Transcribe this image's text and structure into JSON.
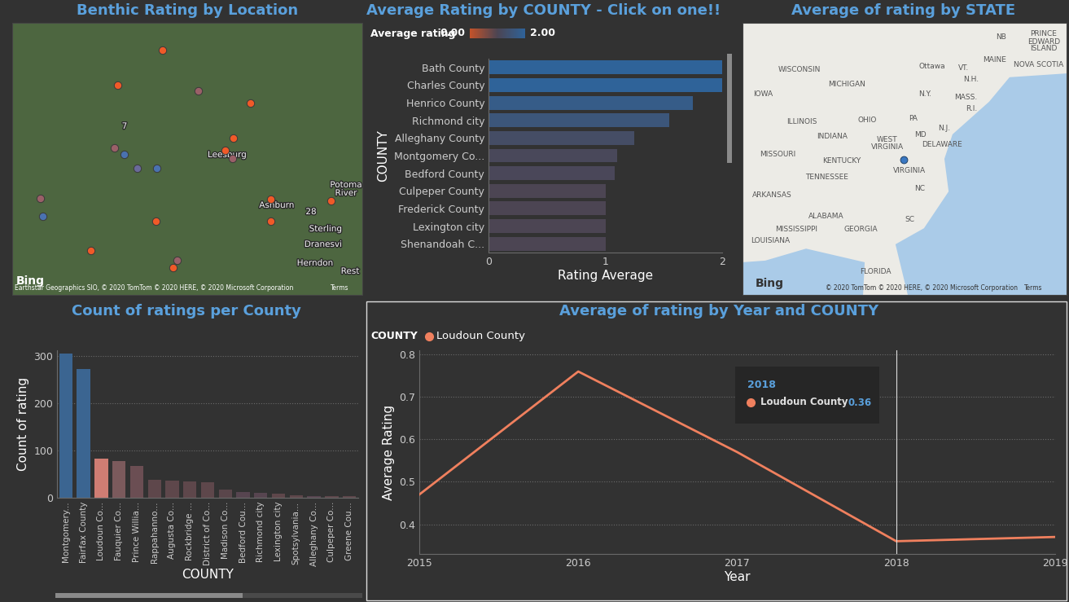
{
  "chart_data": [
    {
      "type": "map",
      "title": "Benthic Rating by Location",
      "xlim": [
        0,
        430
      ],
      "ylim": [
        0,
        334
      ],
      "tick_labels": false,
      "x": [
        185,
        130,
        229,
        293,
        272,
        262,
        271,
        126,
        138,
        154,
        178,
        35,
        38,
        318,
        392,
        177,
        318,
        97,
        203,
        198
      ],
      "y": [
        300,
        257,
        250,
        235,
        192,
        177,
        167,
        180,
        172,
        155,
        155,
        118,
        96,
        117,
        115,
        90,
        90,
        54,
        42,
        33
      ],
      "colors": [
        "#f05a28",
        "#f05a28",
        "#9a6068",
        "#f05a28",
        "#f05a28",
        "#f05a28",
        "#9a6068",
        "#9a6068",
        "#4a72b0",
        "#6a6a9a",
        "#4a72b0",
        "#9a6068",
        "#4a72b0",
        "#f05a28",
        "#f05a28",
        "#f05a28",
        "#f05a28",
        "#f05a28",
        "#9a6068",
        "#f05a28"
      ],
      "labels": [
        {
          "text": "Leesburg",
          "x": 264,
          "y": 172
        },
        {
          "text": "Ashburn",
          "x": 325,
          "y": 110
        },
        {
          "text": "Sterling",
          "x": 385,
          "y": 81
        },
        {
          "text": "Dranesvi",
          "x": 382,
          "y": 62
        },
        {
          "text": "Herndon",
          "x": 372,
          "y": 39
        },
        {
          "text": "Rest",
          "x": 415,
          "y": 29
        },
        {
          "text": "Potoma\nRiver",
          "x": 410,
          "y": 130
        },
        {
          "text": "7",
          "x": 138,
          "y": 207
        },
        {
          "text": "28",
          "x": 367,
          "y": 102
        }
      ],
      "logo": "Bing",
      "credits": "Earthstar Geographics SIO, © 2020 TomTom © 2020 HERE, © 2020 Microsoft Corporation",
      "terms": "Terms"
    },
    {
      "type": "bar",
      "orientation": "horizontal",
      "title": "Average Rating by COUNTY - Click on one!!",
      "xlabel": "Rating Average",
      "ylabel": "COUNTY",
      "categories": [
        "Bath County",
        "Charles County",
        "Henrico County",
        "Richmond city",
        "Alleghany County",
        "Montgomery Co...",
        "Bedford County",
        "Culpeper County",
        "Frederick County",
        "Lexington city",
        "Shenandoah C..."
      ],
      "values": [
        2,
        2,
        1.75,
        1.55,
        1.25,
        1.1,
        1.08,
        1,
        1,
        1,
        1
      ],
      "xlim": [
        0,
        2
      ],
      "xticks": [
        0,
        1,
        2
      ],
      "colorbar_title": "Average rating",
      "colorbar_lim": [
        0,
        2
      ],
      "colorbar_ticks": [
        {
          "value": 0,
          "label": "0.00"
        },
        {
          "value": 2,
          "label": "2.00"
        }
      ]
    },
    {
      "type": "map",
      "title": "Average of rating by STATE",
      "xlim": [
        0,
        398
      ],
      "ylim": [
        0,
        334
      ],
      "tick_labels": false,
      "x": [
        198
      ],
      "y": [
        166
      ],
      "colors": [
        "#3a78c2"
      ],
      "labels": [
        {
          "text": "WISCONSIN",
          "x": 70,
          "y": 277
        },
        {
          "text": "MICHIGAN",
          "x": 128,
          "y": 258
        },
        {
          "text": "IOWA",
          "x": 25,
          "y": 247
        },
        {
          "text": "ILLINOIS",
          "x": 73,
          "y": 212
        },
        {
          "text": "INDIANA",
          "x": 110,
          "y": 195
        },
        {
          "text": "OHIO",
          "x": 153,
          "y": 215
        },
        {
          "text": "PA",
          "x": 210,
          "y": 217
        },
        {
          "text": "N.Y.",
          "x": 224,
          "y": 246
        },
        {
          "text": "Ottawa",
          "x": 233,
          "y": 280
        },
        {
          "text": "MISSOURI",
          "x": 43,
          "y": 173
        },
        {
          "text": "KENTUCKY",
          "x": 122,
          "y": 165
        },
        {
          "text": "WEST\nVIRGINIA",
          "x": 178,
          "y": 186
        },
        {
          "text": "VIRGINIA",
          "x": 205,
          "y": 152
        },
        {
          "text": "MD",
          "x": 218,
          "y": 197
        },
        {
          "text": "DELAWARE",
          "x": 245,
          "y": 184
        },
        {
          "text": "N.J.",
          "x": 248,
          "y": 204
        },
        {
          "text": "TENNESSEE",
          "x": 104,
          "y": 145
        },
        {
          "text": "NC",
          "x": 218,
          "y": 130
        },
        {
          "text": "SC",
          "x": 205,
          "y": 92
        },
        {
          "text": "ARKANSAS",
          "x": 36,
          "y": 123
        },
        {
          "text": "ALABAMA",
          "x": 103,
          "y": 97
        },
        {
          "text": "GEORGIA",
          "x": 145,
          "y": 81
        },
        {
          "text": "MISSISSIPPI",
          "x": 66,
          "y": 81
        },
        {
          "text": "LOUISIANA",
          "x": 34,
          "y": 67
        },
        {
          "text": "FLORIDA",
          "x": 163,
          "y": 29
        },
        {
          "text": "NB",
          "x": 318,
          "y": 316
        },
        {
          "text": "PRINCE\nEDWARD\nISLAND",
          "x": 370,
          "y": 311
        },
        {
          "text": "MAINE",
          "x": 310,
          "y": 289
        },
        {
          "text": "NOVA SCOTIA",
          "x": 364,
          "y": 283
        },
        {
          "text": "VT.",
          "x": 272,
          "y": 278
        },
        {
          "text": "N.H.",
          "x": 281,
          "y": 265
        },
        {
          "text": "MASS.",
          "x": 274,
          "y": 242
        },
        {
          "text": "R.I.",
          "x": 281,
          "y": 229
        }
      ],
      "logo": "Bing",
      "credits": "© 2020 TomTom © 2020 HERE, © 2020 Microsoft Corporation",
      "terms": "Terms"
    },
    {
      "type": "bar",
      "title": "Count of ratings per County",
      "xlabel": "COUNTY",
      "ylabel": "Count of rating",
      "categories": [
        "Montgomery...",
        "Fairfax County",
        "Loudoun Co...",
        "Fauquier Co...",
        "Prince Willia...",
        "Rappahanno...",
        "Augusta Co...",
        "Rockbridge ...",
        "District of Co...",
        "Madison Co...",
        "Bedford Cou...",
        "Richmond city",
        "Lexington city",
        "Spotsylvania...",
        "Alleghany Co...",
        "Culpeper Co...",
        "Greene Cou..."
      ],
      "values": [
        305,
        273,
        83,
        78,
        68,
        38,
        36,
        34,
        33,
        17,
        12,
        11,
        9,
        5,
        4,
        4,
        4
      ],
      "colors": [
        "#3b6591",
        "#3b6591",
        "#cf7d73",
        "#7b5a5c",
        "#6b4e53",
        "#5e474b",
        "#5e474b",
        "#5e474b",
        "#5e474b",
        "#5a464b",
        "#574550",
        "#574550",
        "#5e474b",
        "#5e474b",
        "#574550",
        "#5e474b",
        "#5e474b"
      ],
      "ylim": [
        0,
        312
      ],
      "yticks": [
        0,
        100,
        200,
        300
      ],
      "grid": true
    },
    {
      "type": "line",
      "title": "Average of rating by Year and COUNTY",
      "xlabel": "Year",
      "ylabel": "Average Rating",
      "x": [
        2015,
        2016,
        2017,
        2018,
        2019
      ],
      "series": [
        {
          "name": "Loudoun County",
          "color": "#f0805e",
          "values": [
            0.47,
            0.76,
            0.57,
            0.36,
            0.37
          ]
        }
      ],
      "xlim": [
        2015,
        2019
      ],
      "xticks": [
        2015,
        2016,
        2017,
        2018,
        2019
      ],
      "ylim": [
        0.33,
        0.81
      ],
      "yticks": [
        0.4,
        0.5,
        0.6,
        0.7,
        0.8
      ],
      "grid": true,
      "legend": "upper left",
      "legend_title": "COUNTY",
      "tooltip": {
        "x": 2018,
        "title": "2018",
        "name": "Loudoun County",
        "value": 0.36
      }
    }
  ]
}
